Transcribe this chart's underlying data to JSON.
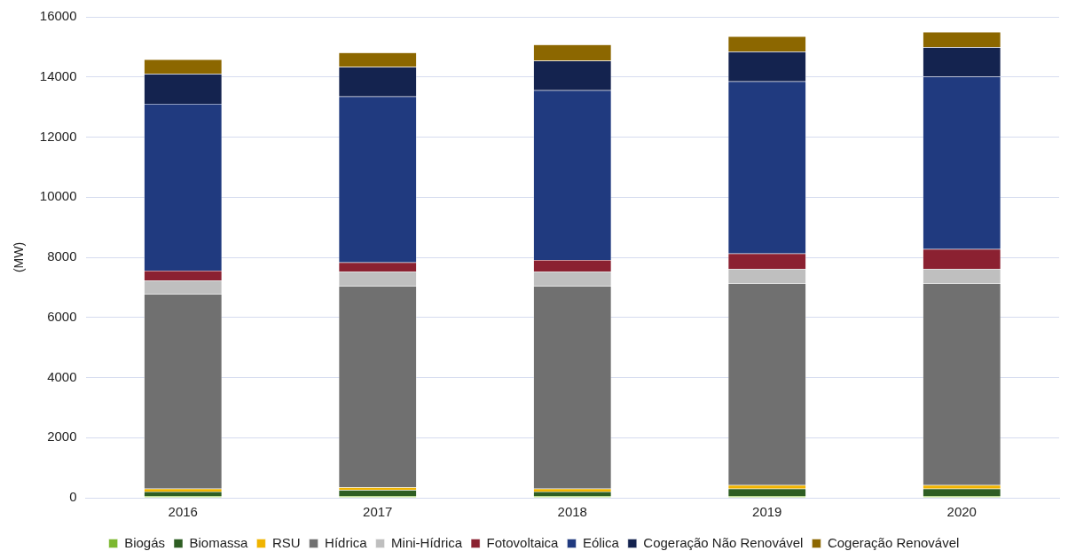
{
  "chart_data": {
    "type": "bar",
    "stacked": true,
    "ylabel": "(MW)",
    "categories": [
      "2016",
      "2017",
      "2018",
      "2019",
      "2020"
    ],
    "series": [
      {
        "name": "Biogás",
        "color": "#7cb82f",
        "values": [
          60,
          60,
          60,
          60,
          60
        ]
      },
      {
        "name": "Biomassa",
        "color": "#2e5e23",
        "values": [
          150,
          200,
          150,
          240,
          240
        ]
      },
      {
        "name": "RSU",
        "color": "#f0b400",
        "values": [
          90,
          90,
          90,
          120,
          120
        ]
      },
      {
        "name": "Hídrica",
        "color": "#707070",
        "values": [
          6480,
          6700,
          6745,
          6715,
          6715
        ]
      },
      {
        "name": "Mini-Hídrica",
        "color": "#bfbfbf",
        "values": [
          450,
          480,
          480,
          480,
          480
        ]
      },
      {
        "name": "Fotovoltaica",
        "color": "#8b2131",
        "values": [
          330,
          300,
          390,
          510,
          660
        ]
      },
      {
        "name": "Eólica",
        "color": "#203a7f",
        "values": [
          5550,
          5520,
          5640,
          5730,
          5730
        ]
      },
      {
        "name": "Cogeração Não Renovável",
        "color": "#14234f",
        "values": [
          990,
          985,
          985,
          985,
          985
        ]
      },
      {
        "name": "Cogeração Renovável",
        "color": "#8c6700",
        "values": [
          480,
          480,
          540,
          510,
          510
        ]
      }
    ],
    "ylim": [
      0,
      16000
    ],
    "yticks": [
      0,
      2000,
      4000,
      6000,
      8000,
      10000,
      12000,
      14000,
      16000
    ],
    "grid": "y",
    "legend": "bottom"
  }
}
